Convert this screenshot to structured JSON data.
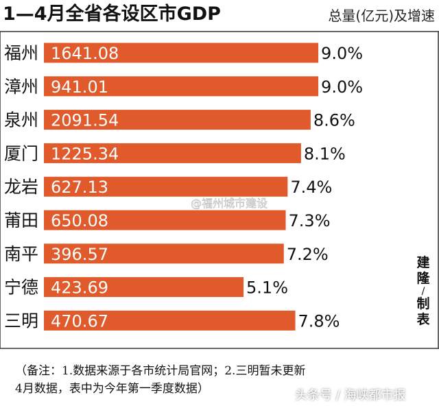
{
  "chart_data": {
    "type": "bar",
    "orientation": "horizontal",
    "title": "1—4月全省各设区市GDP",
    "subtitle": "总量(亿元)及增速",
    "categories": [
      "福州",
      "漳州",
      "泉州",
      "厦门",
      "龙岩",
      "莆田",
      "南平",
      "宁德",
      "三明"
    ],
    "series": [
      {
        "values": [
          1641.08,
          941.01,
          2091.54,
          1225.34,
          627.13,
          650.08,
          396.57,
          423.69,
          470.67
        ],
        "growth": [
          "9.0%",
          "9.0%",
          "8.6%",
          "8.1%",
          "7.4%",
          "7.3%",
          "7.2%",
          "5.1%",
          "7.8%"
        ]
      }
    ],
    "bar_length_measure": "growth_rate_percent",
    "bar_length_values": [
      9.0,
      9.0,
      8.6,
      8.1,
      7.4,
      7.3,
      7.2,
      5.1,
      7.8
    ],
    "value_labels": [
      "1641.08",
      "941.01",
      "2091.54",
      "1225.34",
      "627.13",
      "650.08",
      "396.57",
      "423.69",
      "470.67"
    ],
    "grid": false,
    "legend": "none",
    "bar_color": "#e05a2b"
  },
  "colors": {
    "bar": "#e05a2b",
    "bar_text": "#ffffff",
    "text": "#111111"
  },
  "watermark_center": "@福州城市建设",
  "watermark_bottom": "头条号 / 海峡都市报",
  "author": [
    "建",
    "隆",
    "/",
    "制",
    "表"
  ],
  "footer": {
    "line1": "（备注：1.数据来源于各市统计局官网；2.三明暂未更新",
    "line2": "4月数据，表中为今年第一季度数据）"
  }
}
